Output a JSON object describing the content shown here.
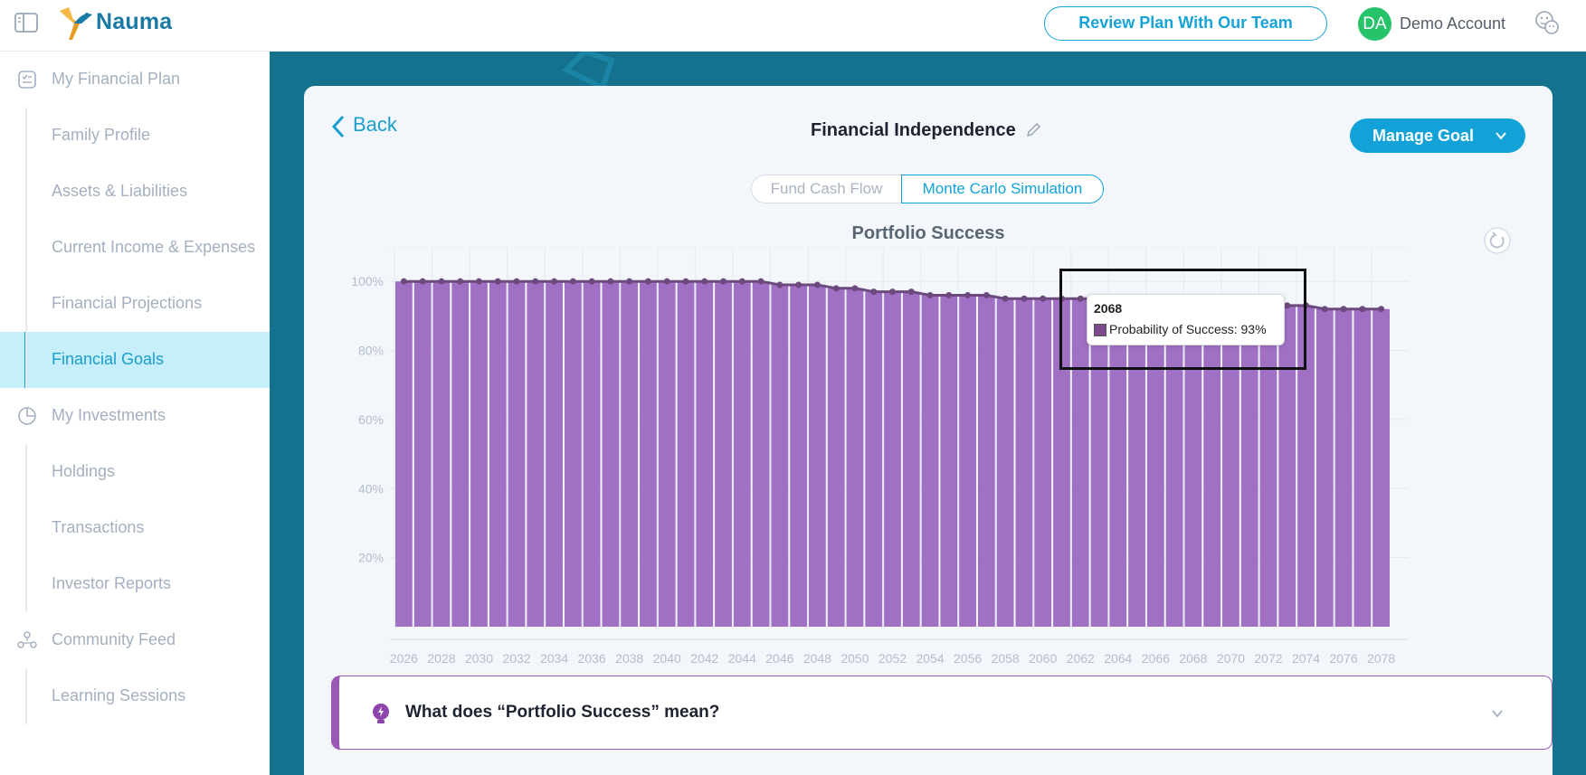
{
  "header": {
    "brand": "Nauma",
    "review_button": "Review Plan With Our Team",
    "avatar_initials": "DA",
    "account_name": "Demo Account"
  },
  "sidebar": {
    "items": [
      {
        "label": "My Financial Plan",
        "icon": "checklist-icon",
        "section": true
      },
      {
        "label": "Family Profile"
      },
      {
        "label": "Assets & Liabilities"
      },
      {
        "label": "Current Income & Expenses"
      },
      {
        "label": "Financial Projections"
      },
      {
        "label": "Financial Goals",
        "active": true
      },
      {
        "label": "My Investments",
        "icon": "pie-chart-icon",
        "section": true
      },
      {
        "label": "Holdings"
      },
      {
        "label": "Transactions"
      },
      {
        "label": "Investor Reports"
      },
      {
        "label": "Community Feed",
        "icon": "people-icon",
        "section": true
      },
      {
        "label": "Learning Sessions"
      }
    ]
  },
  "goal": {
    "back_label": "Back",
    "title": "Financial Independence",
    "manage_button": "Manage Goal"
  },
  "tabs": [
    {
      "label": "Fund Cash Flow",
      "active": false
    },
    {
      "label": "Monte Carlo Simulation",
      "active": true
    }
  ],
  "chart_title": "Portfolio Success",
  "tooltip": {
    "year": "2068",
    "text": "Probability of Success: 93%"
  },
  "faq": {
    "question": "What does “Portfolio Success” mean?"
  },
  "colors": {
    "bar": "#a070c4",
    "line": "#6c4a7e",
    "accent": "#13a2d8",
    "main_bg": "#14728f"
  },
  "chart_data": {
    "type": "bar",
    "title": "Portfolio Success",
    "series_line_overlay": true,
    "ylim": [
      0,
      110
    ],
    "yticks": [
      "20%",
      "40%",
      "60%",
      "80%",
      "100%"
    ],
    "ytick_values": [
      20,
      40,
      60,
      80,
      100
    ],
    "x_tick_labels": [
      "2026",
      "2028",
      "2030",
      "2032",
      "2034",
      "2036",
      "2038",
      "2040",
      "2042",
      "2044",
      "2046",
      "2048",
      "2050",
      "2052",
      "2054",
      "2056",
      "2058",
      "2060",
      "2062",
      "2064",
      "2066",
      "2068",
      "2070",
      "2072",
      "2074",
      "2076",
      "2078"
    ],
    "x": [
      2026,
      2027,
      2028,
      2029,
      2030,
      2031,
      2032,
      2033,
      2034,
      2035,
      2036,
      2037,
      2038,
      2039,
      2040,
      2041,
      2042,
      2043,
      2044,
      2045,
      2046,
      2047,
      2048,
      2049,
      2050,
      2051,
      2052,
      2053,
      2054,
      2055,
      2056,
      2057,
      2058,
      2059,
      2060,
      2061,
      2062,
      2063,
      2064,
      2065,
      2066,
      2067,
      2068,
      2069,
      2070,
      2071,
      2072,
      2073,
      2074,
      2075,
      2076,
      2077,
      2078
    ],
    "series": [
      {
        "name": "Probability of Success",
        "values": [
          100,
          100,
          100,
          100,
          100,
          100,
          100,
          100,
          100,
          100,
          100,
          100,
          100,
          100,
          100,
          100,
          100,
          100,
          100,
          100,
          99,
          99,
          99,
          98,
          98,
          97,
          97,
          97,
          96,
          96,
          96,
          96,
          95,
          95,
          95,
          95,
          95,
          95,
          94,
          94,
          94,
          94,
          93,
          93,
          93,
          93,
          93,
          93,
          93,
          92,
          92,
          92,
          92
        ]
      }
    ]
  }
}
